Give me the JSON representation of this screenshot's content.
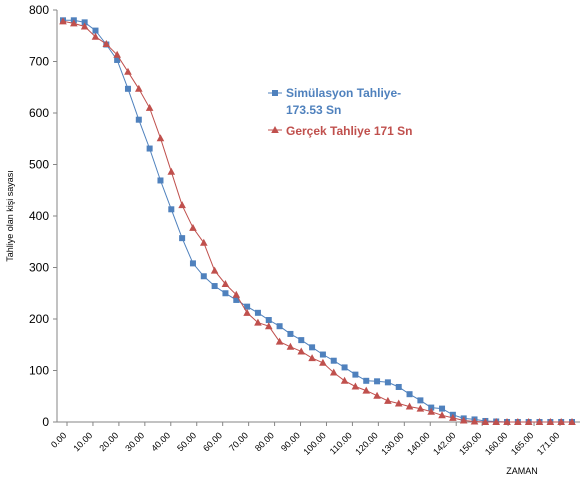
{
  "chart_data": {
    "type": "line",
    "title": "",
    "xlabel": "ZAMAN",
    "ylabel": "Tahliye olan kişi sayası",
    "ylim": [
      0,
      800
    ],
    "yticks": [
      0,
      100,
      200,
      300,
      400,
      500,
      600,
      700,
      800
    ],
    "grid": false,
    "legend_position": "right-middle",
    "x_tick_labels": [
      "0.00",
      "10.00",
      "20.00",
      "30.00",
      "40.00",
      "50.00",
      "60.00",
      "70.00",
      "80.00",
      "90.00",
      "100.00",
      "110.00",
      "120.00",
      "130.00",
      "140.00",
      "142.00",
      "150.00",
      "160.00",
      "165.00",
      "171.00"
    ],
    "x": [
      "0.00",
      "5.00",
      "10.00",
      "15.00",
      "20.00",
      "25.00",
      "30.00",
      "35.00",
      "40.00",
      "45.00",
      "50.00",
      "55.00",
      "60.00",
      "65.00",
      "70.00",
      "75.00",
      "80.00",
      "85.00",
      "90.00",
      "95.00",
      "100.00",
      "105.00",
      "110.00",
      "115.00",
      "120.00",
      "125.00",
      "130.00",
      "135.00",
      "140.00",
      "141.00",
      "142.00",
      "146.00",
      "150.00",
      "155.00",
      "160.00",
      "162.50",
      "165.00",
      "168.00",
      "171.00",
      "171.50",
      "172.00",
      "172.50",
      "173.00",
      "173.53",
      "174.00",
      "174.50",
      "175.00",
      "175.50"
    ],
    "series": [
      {
        "name": "Simülasyon Tahliye-173.53 Sn",
        "color": "#4f81bd",
        "marker": "square",
        "values": [
          780,
          780,
          776,
          760,
          733,
          703,
          647,
          587,
          531,
          469,
          413,
          357,
          308,
          283,
          264,
          250,
          237,
          224,
          212,
          198,
          186,
          171,
          159,
          145,
          131,
          119,
          106,
          92,
          80,
          79,
          77,
          68,
          54,
          42,
          28,
          26,
          14,
          7,
          5,
          2,
          1,
          0,
          0,
          0,
          0,
          0,
          0,
          0
        ]
      },
      {
        "name": "Gerçek Tahliye  171 Sn",
        "color": "#c0504d",
        "marker": "triangle",
        "values": [
          778,
          774,
          768,
          748,
          734,
          713,
          680,
          647,
          610,
          551,
          486,
          421,
          377,
          348,
          294,
          268,
          247,
          212,
          193,
          186,
          156,
          146,
          137,
          124,
          115,
          96,
          80,
          69,
          61,
          51,
          41,
          36,
          30,
          26,
          20,
          13,
          8,
          3,
          1,
          0,
          0,
          0,
          0,
          0,
          0,
          0,
          0,
          0
        ]
      }
    ]
  }
}
